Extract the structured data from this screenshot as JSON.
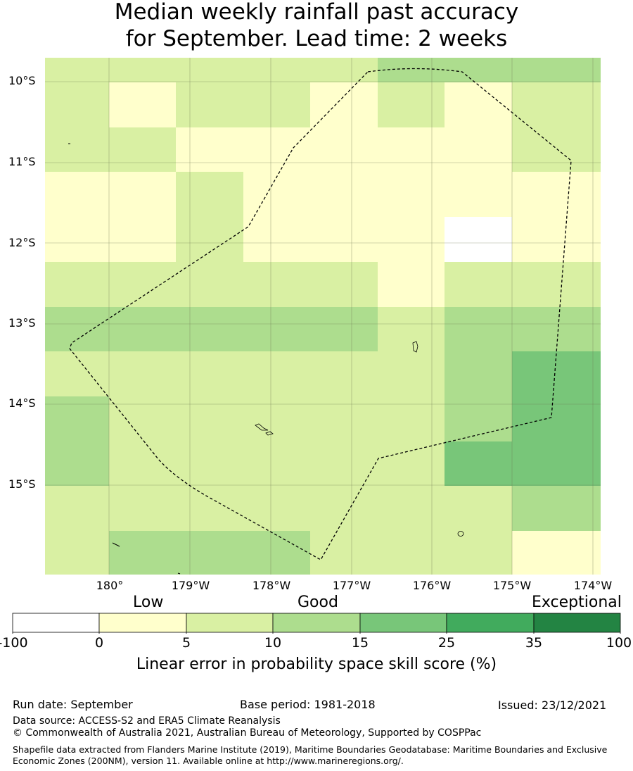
{
  "title": {
    "line1": "Median weekly rainfall past accuracy",
    "line2": "for September. Lead time: 2 weeks"
  },
  "map": {
    "lat_labels": [
      "10°S",
      "11°S",
      "12°S",
      "13°S",
      "14°S",
      "15°S"
    ],
    "lon_labels": [
      "180°",
      "179°W",
      "178°W",
      "177°W",
      "176°W",
      "175°W",
      "174°W"
    ],
    "grid_colors": [
      [
        "c10",
        "c10",
        "c10",
        "c10",
        "c10",
        "c15",
        "c15",
        "c15"
      ],
      [
        "c10",
        "c5",
        "c10",
        "c10",
        "c5",
        "c10",
        "c5",
        "c10"
      ],
      [
        "c10",
        "c10",
        "c5",
        "c5",
        "c5",
        "c5",
        "c5",
        "c10"
      ],
      [
        "c5",
        "c5",
        "c10",
        "c5",
        "c5",
        "c5",
        "c5",
        "c5"
      ],
      [
        "c5",
        "c5",
        "c10",
        "c5",
        "c5",
        "c5",
        "c0",
        "c5"
      ],
      [
        "c10",
        "c10",
        "c10",
        "c10",
        "c10",
        "c5",
        "c10",
        "c10"
      ],
      [
        "c15",
        "c15",
        "c15",
        "c15",
        "c15",
        "c10",
        "c15",
        "c15"
      ],
      [
        "c10",
        "c10",
        "c10",
        "c10",
        "c10",
        "c10",
        "c15",
        "c25"
      ],
      [
        "c15",
        "c10",
        "c10",
        "c10",
        "c10",
        "c10",
        "c15",
        "c25"
      ],
      [
        "c15",
        "c10",
        "c10",
        "c10",
        "c10",
        "c10",
        "c25",
        "c25"
      ],
      [
        "c10",
        "c10",
        "c10",
        "c10",
        "c10",
        "c10",
        "c10",
        "c15"
      ],
      [
        "c10",
        "c15",
        "c15",
        "c15",
        "c10",
        "c10",
        "c10",
        "c5"
      ]
    ]
  },
  "colorbar": {
    "categories": [
      "Low",
      "Good",
      "Exceptional"
    ],
    "ticks": [
      "-100",
      "0",
      "5",
      "10",
      "15",
      "25",
      "35",
      "100"
    ],
    "colors": [
      "#ffffff",
      "#ffffcc",
      "#d9f0a3",
      "#addd8e",
      "#78c679",
      "#41ab5d",
      "#238443"
    ],
    "label": "Linear error in probability space skill score (%)"
  },
  "palette": {
    "c0": "#ffffff",
    "c5": "#ffffcc",
    "c10": "#d9f0a3",
    "c15": "#addd8e",
    "c25": "#78c679"
  },
  "footer": {
    "run_date": "Run date: September",
    "base_period": "Base period: 1981-2018",
    "issued": "Issued: 23/12/2021",
    "data_source": "Data source: ACCESS-S2 and ERA5 Climate Reanalysis",
    "copyright": "© Commonwealth of Australia 2021, Australian Bureau of Meteorology, Supported by COSPPac",
    "shapefile": "Shapefile data extracted from Flanders Marine Institute (2019), Maritime Boundaries Geodatabase: Maritime Boundaries and Exclusive Economic Zones (200NM), version 11. Available online at http://www.marineregions.org/."
  }
}
